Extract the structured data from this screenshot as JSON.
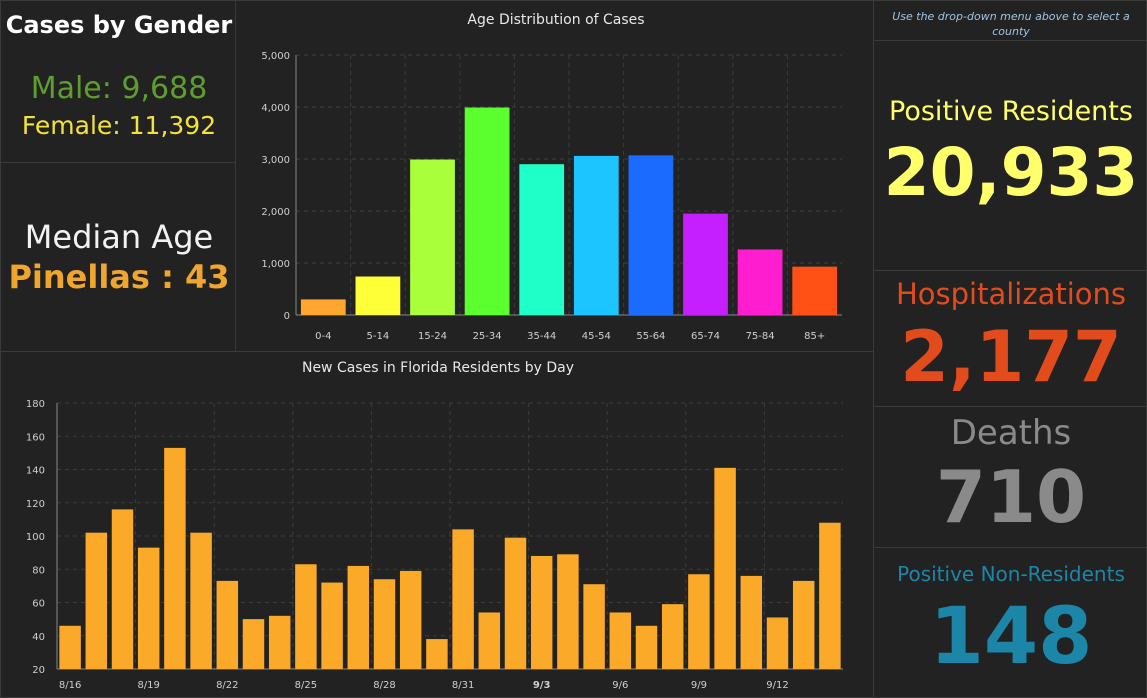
{
  "gender": {
    "title": "Cases by Gender",
    "male": "Male: 9,688",
    "female": "Female: 11,392"
  },
  "median": {
    "label": "Median Age",
    "value": "Pinellas : 43"
  },
  "hint": "Use the drop-down menu above to select a county",
  "stats": {
    "positive_label": "Positive Residents",
    "positive_value": "20,933",
    "hosp_label": "Hospitalizations",
    "hosp_value": "2,177",
    "deaths_label": "Deaths",
    "deaths_value": "710",
    "nonres_label": "Positive Non-Residents",
    "nonres_value": "148"
  },
  "colors": {
    "male": "#5e9e2e",
    "female": "#f3e23c",
    "median_value": "#f0a62e",
    "positive": "#ffff6b",
    "hosp": "#e24c1d",
    "deaths": "#8a8a8a",
    "nonres": "#1c86a8",
    "daily_bar": "#fba928"
  },
  "chart_data": [
    {
      "type": "bar",
      "title": "Age Distribution of Cases",
      "categories": [
        "0-4",
        "5-14",
        "15-24",
        "25-34",
        "35-44",
        "45-54",
        "55-64",
        "65-74",
        "75-84",
        "85+"
      ],
      "values": [
        300,
        740,
        2990,
        3990,
        2900,
        3060,
        3070,
        1950,
        1260,
        930
      ],
      "bar_colors": [
        "#ffa62e",
        "#ffff38",
        "#a8ff3a",
        "#5cff2e",
        "#1fffc8",
        "#1cc5ff",
        "#1b6bff",
        "#c51eff",
        "#ff1ecf",
        "#ff5016"
      ],
      "yticks": [
        "0",
        "1,000",
        "2,000",
        "3,000",
        "4,000",
        "5,000"
      ],
      "ylim": [
        0,
        5000
      ],
      "grid": true
    },
    {
      "type": "bar",
      "title": "New Cases in Florida Residents by Day",
      "x_labels": [
        "8/16",
        "8/19",
        "8/22",
        "8/25",
        "8/28",
        "8/31",
        "9/3",
        "9/6",
        "9/9",
        "9/12"
      ],
      "values": [
        46,
        102,
        116,
        93,
        153,
        102,
        73,
        50,
        52,
        83,
        72,
        82,
        74,
        79,
        38,
        104,
        54,
        99,
        88,
        89,
        71,
        54,
        46,
        59,
        77,
        141,
        76,
        51,
        73,
        108
      ],
      "yticks": [
        "20",
        "40",
        "60",
        "80",
        "100",
        "120",
        "140",
        "160",
        "180"
      ],
      "ylim": [
        20,
        180
      ],
      "grid": true
    }
  ]
}
